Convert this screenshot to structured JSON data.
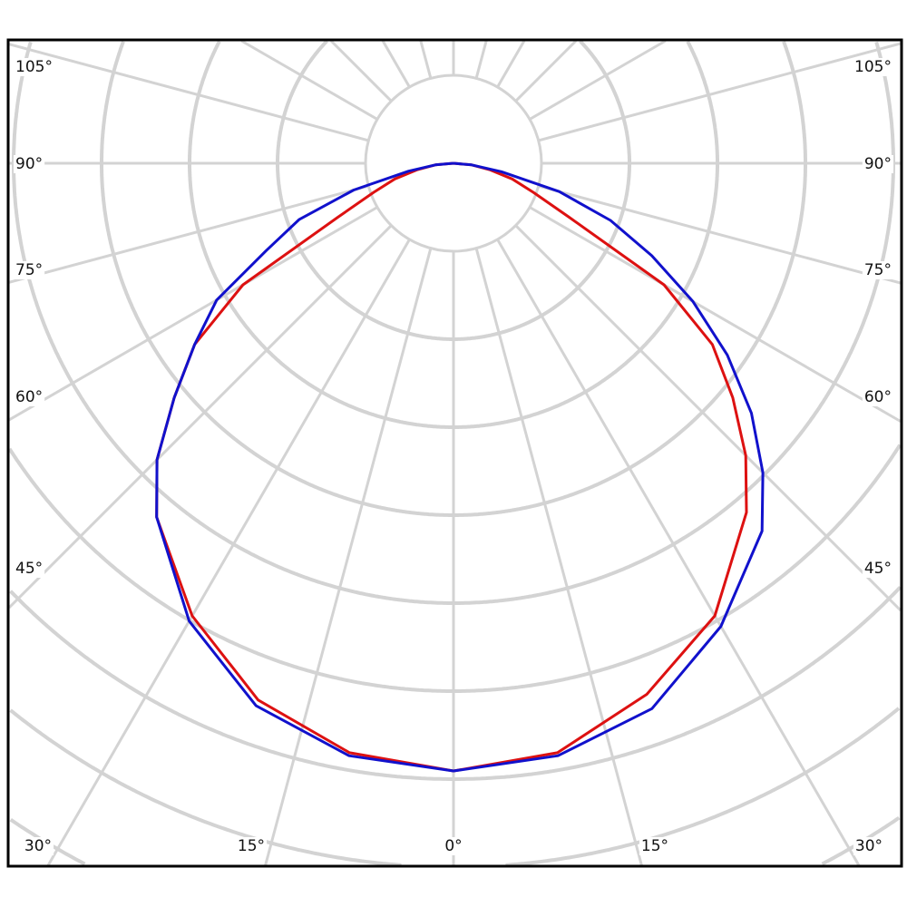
{
  "chart_data": {
    "type": "polar-line",
    "angle_unit": "degrees",
    "zero_direction": "down",
    "angle_tick_labels": {
      "left": [
        "105°",
        "90°",
        "75°",
        "60°",
        "45°"
      ],
      "right": [
        "105°",
        "90°",
        "75°",
        "60°",
        "45°"
      ],
      "bottom": [
        "30°",
        "15°",
        "0°",
        "15°",
        "30°"
      ]
    },
    "radial_gridline_step_deg": 15,
    "grid": true,
    "series": [
      {
        "color": "#dd1111",
        "angles": [
          -90,
          -85,
          -80,
          -75,
          -70,
          -65,
          -60,
          -55,
          -50,
          -45,
          -40,
          -30,
          -20,
          -10,
          0,
          10,
          20,
          30,
          40,
          45,
          50,
          55,
          60,
          65,
          70,
          75,
          80,
          85,
          90
        ],
        "values": [
          0,
          0.03,
          0.06,
          0.1,
          0.14,
          0.21,
          0.4,
          0.52,
          0.6,
          0.69,
          0.76,
          0.86,
          0.94,
          0.985,
          1,
          0.985,
          0.93,
          0.86,
          0.75,
          0.68,
          0.6,
          0.52,
          0.4,
          0.21,
          0.14,
          0.1,
          0.06,
          0.03,
          0
        ]
      },
      {
        "color": "#1111cc",
        "angles": [
          -90,
          -85,
          -80,
          -75,
          -70,
          -65,
          -60,
          -55,
          -50,
          -45,
          -40,
          -30,
          -20,
          -10,
          0,
          10,
          20,
          30,
          40,
          45,
          50,
          55,
          60,
          65,
          70,
          75,
          80,
          85,
          90
        ],
        "values": [
          0,
          0.03,
          0.075,
          0.17,
          0.27,
          0.34,
          0.45,
          0.52,
          0.6,
          0.69,
          0.76,
          0.87,
          0.95,
          0.99,
          1,
          0.99,
          0.955,
          0.88,
          0.79,
          0.72,
          0.64,
          0.55,
          0.455,
          0.36,
          0.275,
          0.18,
          0.08,
          0.03,
          0
        ]
      }
    ],
    "grid_color": "#d3d3d3"
  }
}
